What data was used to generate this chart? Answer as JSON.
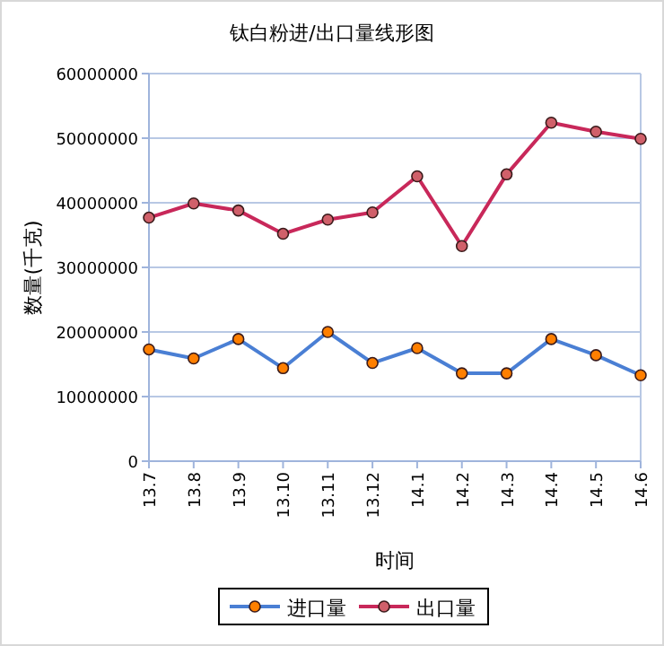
{
  "chart_data": {
    "type": "line",
    "title": "钛白粉进/出口量线形图",
    "xlabel": "时间",
    "ylabel": "数量(千克)",
    "categories": [
      "13.7",
      "13.8",
      "13.9",
      "13.10",
      "13.11",
      "13.12",
      "14.1",
      "14.2",
      "14.3",
      "14.4",
      "14.5",
      "14.6"
    ],
    "series": [
      {
        "name": "进口量",
        "color": "#4a7fd4",
        "colors": [
          "#ff7f00",
          "#ff7f00",
          "#ff7f00",
          "#ff7f00",
          "#ff7f00",
          "#ff7f00",
          "#ff7f00",
          "#ff7f00",
          "#ff7f00",
          "#ff7f00",
          "#ff7f00",
          "#ff7f00"
        ],
        "values": [
          17300000,
          15900000,
          18900000,
          14400000,
          20000000,
          15200000,
          17500000,
          13600000,
          13600000,
          18900000,
          16400000,
          13300000
        ]
      },
      {
        "name": "出口量",
        "color": "#c8285a",
        "colors": [
          "#d0606a",
          "#d0606a",
          "#d0606a",
          "#d0606a",
          "#d0606a",
          "#d0606a",
          "#d0606a",
          "#d0606a",
          "#d0606a",
          "#d0606a",
          "#d0606a",
          "#d0606a"
        ],
        "values": [
          37700000,
          39900000,
          38800000,
          35200000,
          37400000,
          38500000,
          44100000,
          33300000,
          44400000,
          52400000,
          51000000,
          49900000
        ]
      }
    ],
    "ylim": [
      0,
      60000000
    ],
    "yticks": [
      0,
      10000000,
      20000000,
      30000000,
      40000000,
      50000000,
      60000000
    ],
    "grid": "y",
    "legend": "bottom",
    "marker": "circle",
    "line_style": "solid"
  }
}
